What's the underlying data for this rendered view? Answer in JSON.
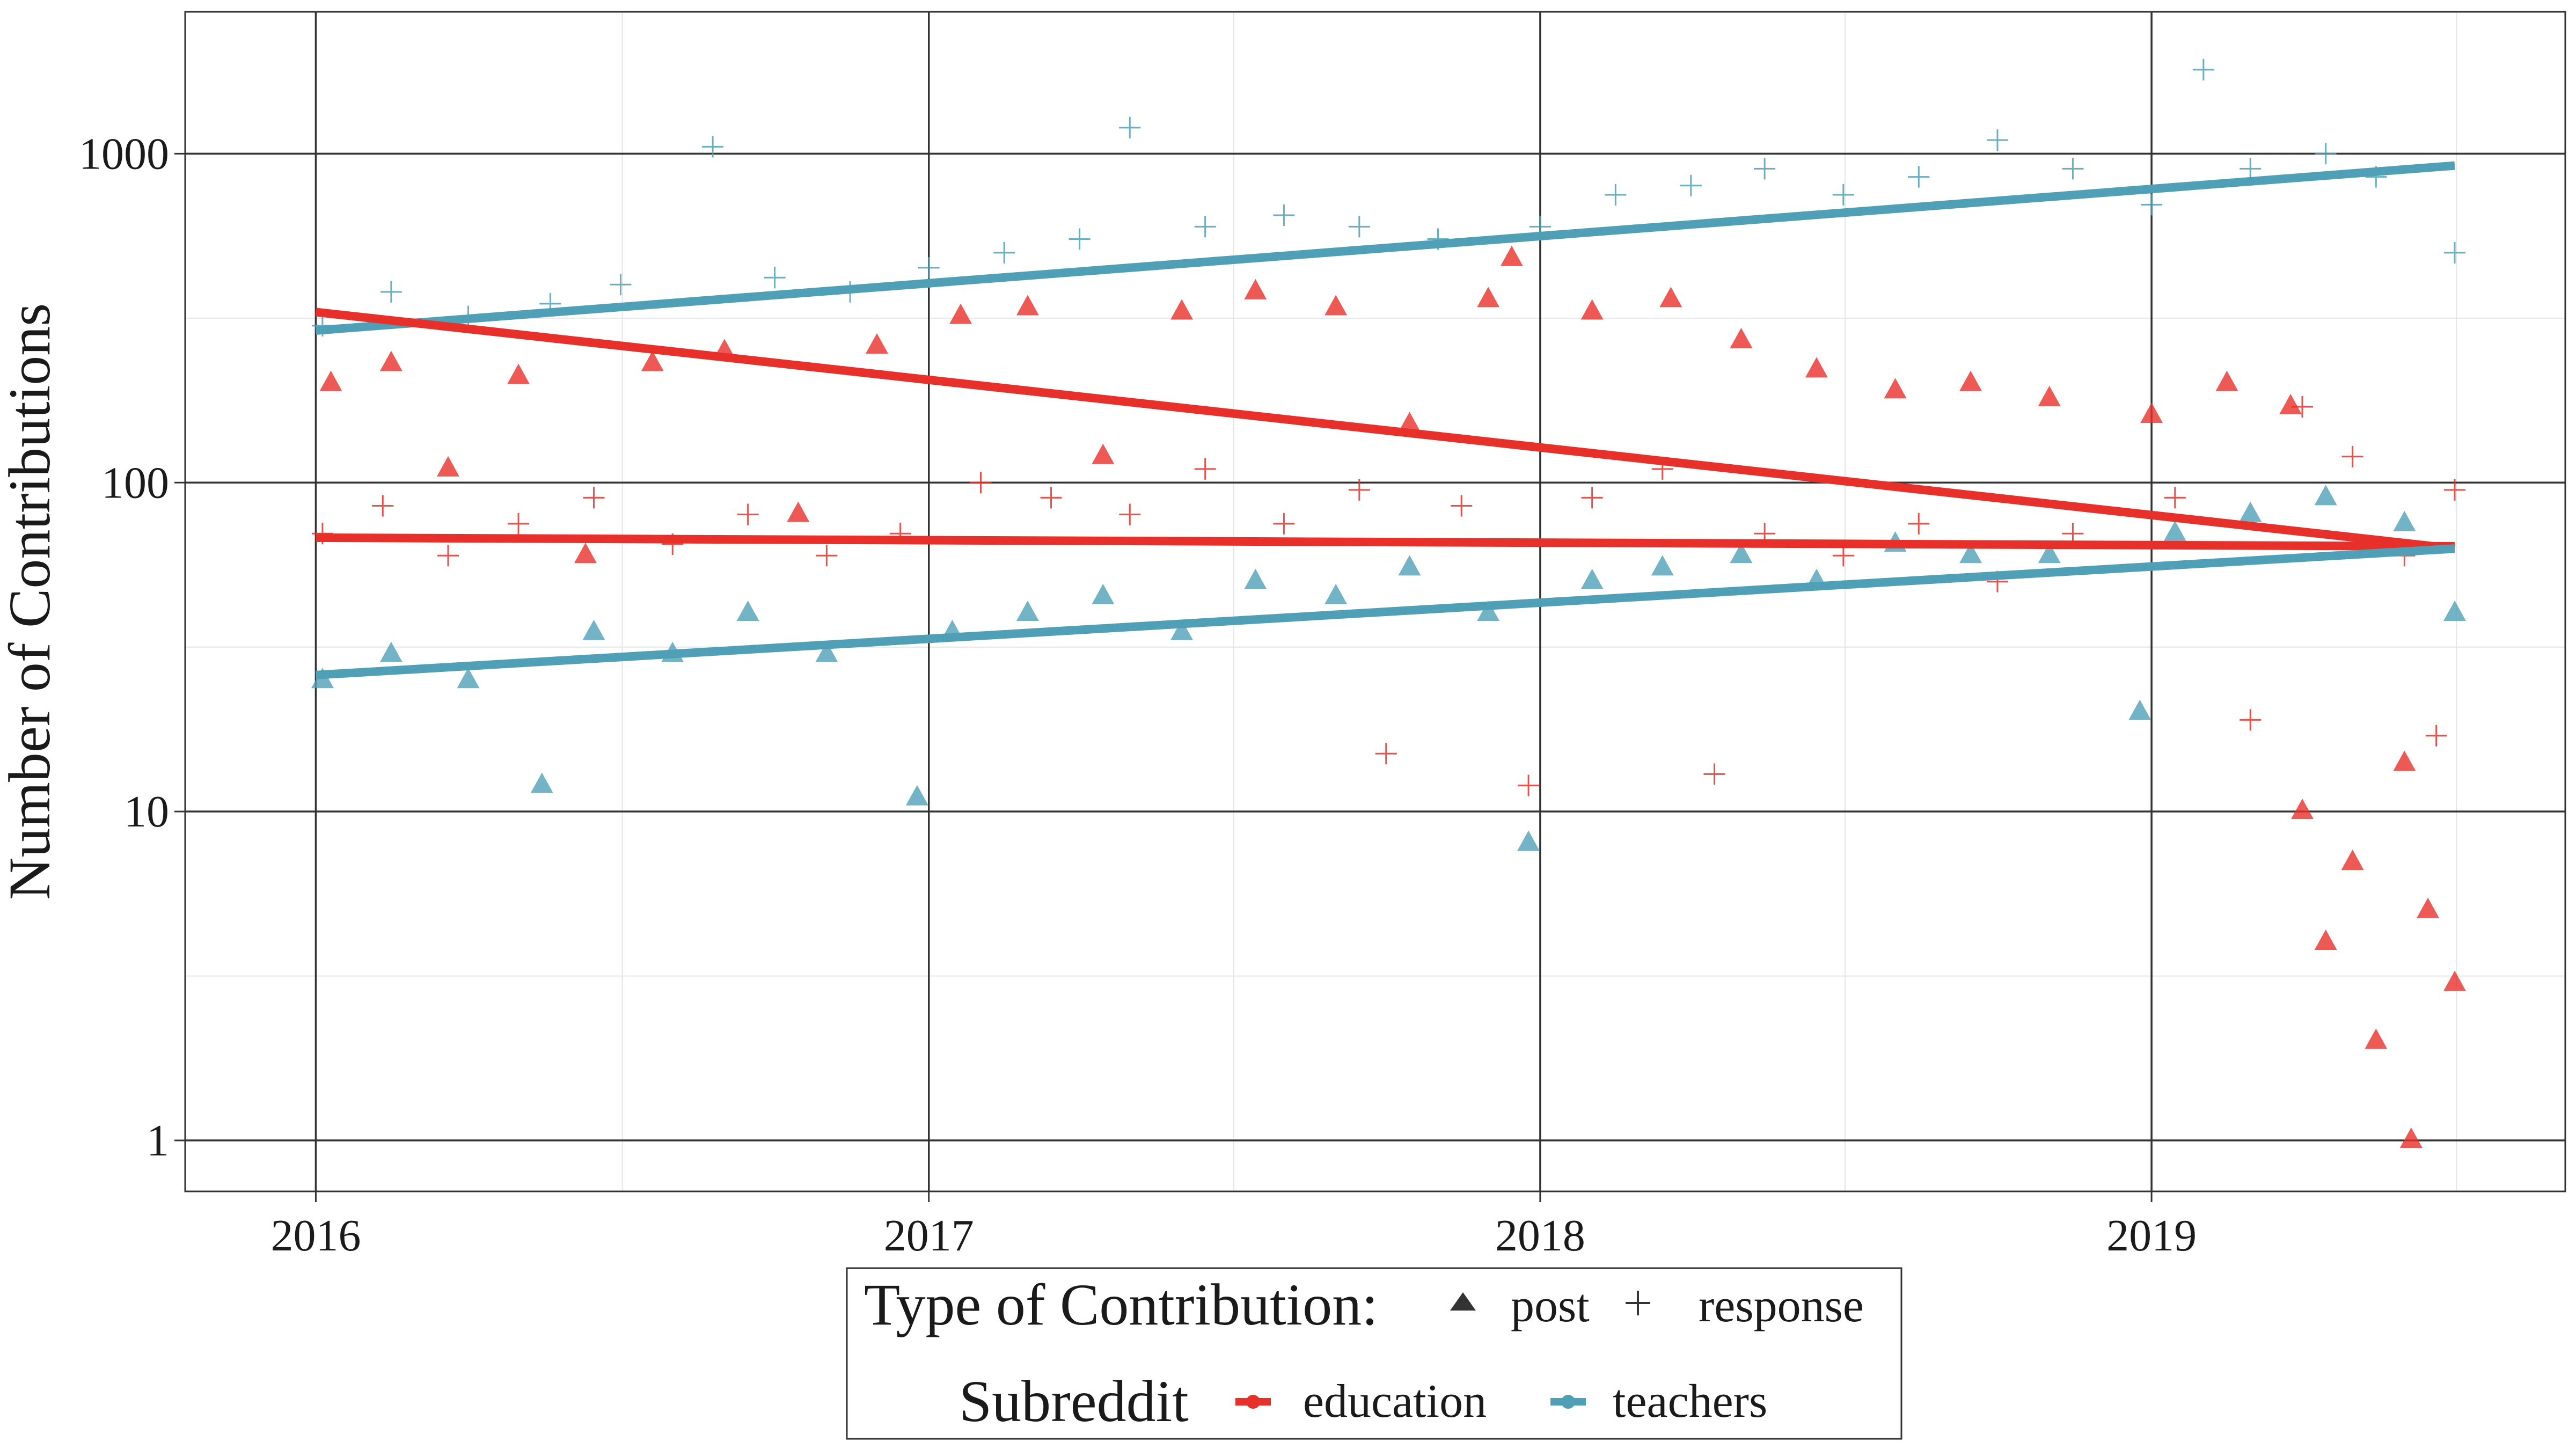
{
  "chart_data": {
    "type": "scatter",
    "title": "",
    "xlabel": "",
    "ylabel": "Number of Contributions",
    "y_scale": "log10",
    "ylim": [
      0.7,
      2700
    ],
    "xlim": [
      "2015-10-15",
      "2019-09-05"
    ],
    "x_ticks": [
      {
        "date": "2016-01-01",
        "label": "2016"
      },
      {
        "date": "2017-01-01",
        "label": "2017"
      },
      {
        "date": "2018-01-01",
        "label": "2018"
      },
      {
        "date": "2019-01-01",
        "label": "2019"
      }
    ],
    "y_ticks": [
      {
        "value": 1,
        "label": "1"
      },
      {
        "value": 10,
        "label": "10"
      },
      {
        "value": 100,
        "label": "100"
      },
      {
        "value": 1000,
        "label": "1000"
      }
    ],
    "grid": true,
    "legend_position": "bottom",
    "legend": {
      "shape_title": "Type of Contribution:",
      "shape_entries": [
        {
          "label": "post",
          "shape": "triangle"
        },
        {
          "label": "response",
          "shape": "plus"
        }
      ],
      "color_title": "Subreddit",
      "color_entries": [
        {
          "label": "education",
          "color": "#e8302a"
        },
        {
          "label": "teachers",
          "color": "#4fa0b6"
        }
      ]
    },
    "colors": {
      "education": "#e8302a",
      "teachers": "#4fa0b6"
    },
    "series": [
      {
        "subreddit": "education",
        "type": "response",
        "marker": "plus",
        "color": "#e8302a",
        "values": [
          [
            "2016-01-05",
            70
          ],
          [
            "2016-02-10",
            85
          ],
          [
            "2016-03-20",
            60
          ],
          [
            "2016-05-01",
            75
          ],
          [
            "2016-06-15",
            90
          ],
          [
            "2016-08-01",
            65
          ],
          [
            "2016-09-15",
            80
          ],
          [
            "2016-11-01",
            60
          ],
          [
            "2016-12-15",
            70
          ],
          [
            "2017-02-01",
            100
          ],
          [
            "2017-03-15",
            90
          ],
          [
            "2017-05-01",
            80
          ],
          [
            "2017-06-15",
            110
          ],
          [
            "2017-08-01",
            75
          ],
          [
            "2017-09-15",
            95
          ],
          [
            "2017-10-01",
            15
          ],
          [
            "2017-11-15",
            85
          ],
          [
            "2017-12-25",
            12
          ],
          [
            "2018-02-01",
            90
          ],
          [
            "2018-03-15",
            110
          ],
          [
            "2018-04-15",
            13
          ],
          [
            "2018-05-15",
            70
          ],
          [
            "2018-07-01",
            60
          ],
          [
            "2018-08-15",
            75
          ],
          [
            "2018-10-01",
            50
          ],
          [
            "2018-11-15",
            70
          ],
          [
            "2019-01-15",
            90
          ],
          [
            "2019-03-01",
            19
          ],
          [
            "2019-04-01",
            170
          ],
          [
            "2019-05-01",
            120
          ],
          [
            "2019-06-01",
            60
          ],
          [
            "2019-06-20",
            17
          ],
          [
            "2019-07-01",
            95
          ]
        ]
      },
      {
        "subreddit": "education",
        "type": "post",
        "marker": "triangle",
        "color": "#e8302a",
        "values": [
          [
            "2016-01-10",
            200
          ],
          [
            "2016-02-15",
            230
          ],
          [
            "2016-03-20",
            110
          ],
          [
            "2016-05-01",
            210
          ],
          [
            "2016-06-10",
            60
          ],
          [
            "2016-07-20",
            230
          ],
          [
            "2016-09-01",
            250
          ],
          [
            "2016-10-15",
            80
          ],
          [
            "2016-12-01",
            260
          ],
          [
            "2017-01-20",
            320
          ],
          [
            "2017-03-01",
            340
          ],
          [
            "2017-04-15",
            120
          ],
          [
            "2017-06-01",
            330
          ],
          [
            "2017-07-15",
            380
          ],
          [
            "2017-09-01",
            340
          ],
          [
            "2017-10-15",
            150
          ],
          [
            "2017-12-01",
            360
          ],
          [
            "2017-12-15",
            480
          ],
          [
            "2018-02-01",
            330
          ],
          [
            "2018-03-20",
            360
          ],
          [
            "2018-05-01",
            270
          ],
          [
            "2018-06-15",
            220
          ],
          [
            "2018-08-01",
            190
          ],
          [
            "2018-09-15",
            200
          ],
          [
            "2018-11-01",
            180
          ],
          [
            "2019-01-01",
            160
          ],
          [
            "2019-02-15",
            200
          ],
          [
            "2019-03-25",
            170
          ],
          [
            "2019-04-01",
            10
          ],
          [
            "2019-04-15",
            4
          ],
          [
            "2019-05-01",
            7
          ],
          [
            "2019-05-15",
            2
          ],
          [
            "2019-06-01",
            14
          ],
          [
            "2019-06-05",
            1
          ],
          [
            "2019-06-15",
            5
          ],
          [
            "2019-07-01",
            3
          ]
        ]
      },
      {
        "subreddit": "teachers",
        "type": "response",
        "marker": "plus",
        "color": "#4fa0b6",
        "values": [
          [
            "2016-01-05",
            300
          ],
          [
            "2016-02-15",
            380
          ],
          [
            "2016-04-01",
            320
          ],
          [
            "2016-05-20",
            350
          ],
          [
            "2016-07-01",
            400
          ],
          [
            "2016-08-25",
            1050
          ],
          [
            "2016-10-01",
            420
          ],
          [
            "2016-11-15",
            380
          ],
          [
            "2017-01-01",
            450
          ],
          [
            "2017-02-15",
            500
          ],
          [
            "2017-04-01",
            550
          ],
          [
            "2017-05-01",
            1200
          ],
          [
            "2017-06-15",
            600
          ],
          [
            "2017-08-01",
            650
          ],
          [
            "2017-09-15",
            600
          ],
          [
            "2017-11-01",
            550
          ],
          [
            "2018-01-01",
            600
          ],
          [
            "2018-02-15",
            750
          ],
          [
            "2018-04-01",
            800
          ],
          [
            "2018-05-15",
            900
          ],
          [
            "2018-07-01",
            750
          ],
          [
            "2018-08-15",
            850
          ],
          [
            "2018-10-01",
            1100
          ],
          [
            "2018-11-15",
            900
          ],
          [
            "2019-01-01",
            700
          ],
          [
            "2019-02-01",
            1800
          ],
          [
            "2019-03-01",
            900
          ],
          [
            "2019-04-15",
            1000
          ],
          [
            "2019-05-15",
            850
          ],
          [
            "2019-07-01",
            500
          ]
        ]
      },
      {
        "subreddit": "teachers",
        "type": "post",
        "marker": "triangle",
        "color": "#4fa0b6",
        "values": [
          [
            "2016-01-05",
            25
          ],
          [
            "2016-02-15",
            30
          ],
          [
            "2016-04-01",
            25
          ],
          [
            "2016-05-15",
            12
          ],
          [
            "2016-06-15",
            35
          ],
          [
            "2016-08-01",
            30
          ],
          [
            "2016-09-15",
            40
          ],
          [
            "2016-11-01",
            30
          ],
          [
            "2016-12-25",
            11
          ],
          [
            "2017-01-15",
            35
          ],
          [
            "2017-03-01",
            40
          ],
          [
            "2017-04-15",
            45
          ],
          [
            "2017-06-01",
            35
          ],
          [
            "2017-07-15",
            50
          ],
          [
            "2017-09-01",
            45
          ],
          [
            "2017-10-15",
            55
          ],
          [
            "2017-12-01",
            40
          ],
          [
            "2017-12-25",
            8
          ],
          [
            "2018-02-01",
            50
          ],
          [
            "2018-03-15",
            55
          ],
          [
            "2018-05-01",
            60
          ],
          [
            "2018-06-15",
            50
          ],
          [
            "2018-08-01",
            65
          ],
          [
            "2018-09-15",
            60
          ],
          [
            "2018-11-01",
            60
          ],
          [
            "2018-12-25",
            20
          ],
          [
            "2019-01-15",
            70
          ],
          [
            "2019-03-01",
            80
          ],
          [
            "2019-04-15",
            90
          ],
          [
            "2019-06-01",
            75
          ],
          [
            "2019-07-01",
            40
          ]
        ]
      }
    ],
    "trend_lines": [
      {
        "subreddit": "teachers",
        "type": "response",
        "color": "#4fa0b6",
        "from": [
          "2016-01-01",
          290
        ],
        "to": [
          "2019-07-01",
          920
        ]
      },
      {
        "subreddit": "education",
        "type": "post",
        "color": "#e8302a",
        "from": [
          "2016-01-01",
          330
        ],
        "to": [
          "2019-07-01",
          63
        ]
      },
      {
        "subreddit": "education",
        "type": "response",
        "color": "#e8302a",
        "from": [
          "2016-01-01",
          68
        ],
        "to": [
          "2019-07-01",
          64
        ]
      },
      {
        "subreddit": "teachers",
        "type": "post",
        "color": "#4fa0b6",
        "from": [
          "2016-01-01",
          26
        ],
        "to": [
          "2019-07-01",
          63
        ]
      }
    ]
  }
}
